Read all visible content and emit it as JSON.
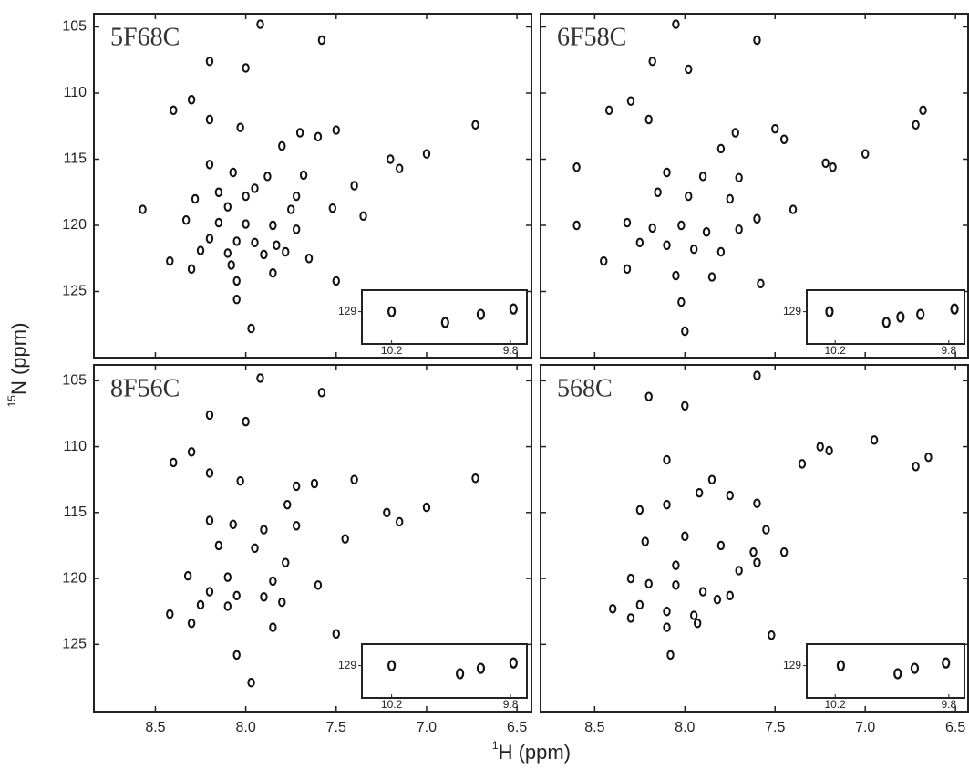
{
  "x_label_sup": "1",
  "x_label": "H (ppm)",
  "y_label_sup": "15",
  "y_label": "N (ppm)",
  "chart_data": [
    {
      "type": "scatter",
      "title": "5F68C",
      "x": [
        7.92,
        7.58,
        8.2,
        8.0,
        8.3,
        8.4,
        8.2,
        8.03,
        6.73,
        7.7,
        7.6,
        7.5,
        7.8,
        7.0,
        7.2,
        7.15,
        8.07,
        7.88,
        7.68,
        8.2,
        7.4,
        7.95,
        8.15,
        8.0,
        7.72,
        8.28,
        8.1,
        7.75,
        7.52,
        7.35,
        8.33,
        8.15,
        8.0,
        7.85,
        7.72,
        8.2,
        8.05,
        7.95,
        7.83,
        8.25,
        8.1,
        7.9,
        7.78,
        7.65,
        8.42,
        8.3,
        8.08,
        7.85,
        8.05,
        7.5,
        8.05,
        7.97,
        8.57
      ],
      "values": [
        104.8,
        106.0,
        107.6,
        108.1,
        110.5,
        111.3,
        112.0,
        112.6,
        112.4,
        113.0,
        113.3,
        112.8,
        114.0,
        114.6,
        115.0,
        115.7,
        116.0,
        116.3,
        116.2,
        115.4,
        117.0,
        117.2,
        117.5,
        117.8,
        117.8,
        118.0,
        118.6,
        118.8,
        118.7,
        119.3,
        119.6,
        119.8,
        119.9,
        120.0,
        120.3,
        121.0,
        121.2,
        121.3,
        121.5,
        121.9,
        122.1,
        122.2,
        122.0,
        122.5,
        122.7,
        123.3,
        123.0,
        123.6,
        124.2,
        124.2,
        125.6,
        127.8,
        118.8
      ],
      "xlim": [
        8.84,
        6.42
      ],
      "ylim": [
        104,
        130
      ],
      "xticks": [
        8.5,
        {
          "value": 8,
          "label": "8.0"
        },
        7.5,
        {
          "value": 7,
          "label": "7.0"
        },
        6.5
      ],
      "yticks": [
        105,
        110,
        115,
        120,
        125
      ],
      "inset": {
        "x": [
          10.2,
          10.02,
          9.9,
          9.79
        ],
        "values": [
          129.0,
          129.2,
          129.05,
          128.95
        ],
        "xlim": [
          10.3,
          9.745
        ],
        "ylim": [
          128.6,
          129.6
        ],
        "xticks": [
          10.2,
          9.8
        ],
        "yticks": [
          129
        ]
      }
    },
    {
      "type": "scatter",
      "title": "6F58C",
      "x": [
        8.05,
        7.6,
        8.18,
        7.98,
        8.3,
        8.42,
        8.2,
        6.72,
        6.68,
        7.72,
        7.5,
        7.45,
        7.8,
        7.22,
        7.18,
        7.0,
        8.6,
        8.1,
        7.9,
        7.7,
        8.15,
        7.98,
        7.75,
        7.4,
        8.32,
        8.18,
        8.02,
        7.88,
        7.7,
        7.6,
        8.25,
        8.1,
        7.95,
        7.8,
        8.45,
        8.32,
        8.05,
        7.85,
        7.58,
        8.6,
        8.02,
        8.0
      ],
      "values": [
        104.8,
        106.0,
        107.6,
        108.2,
        110.6,
        111.3,
        112.0,
        112.4,
        111.3,
        113.0,
        112.7,
        113.5,
        114.2,
        115.3,
        115.6,
        114.6,
        115.6,
        116.0,
        116.3,
        116.4,
        117.5,
        117.8,
        118.0,
        118.8,
        119.8,
        120.2,
        120.0,
        120.5,
        120.3,
        119.5,
        121.3,
        121.5,
        121.8,
        122.0,
        122.7,
        123.3,
        123.8,
        123.9,
        124.4,
        120.0,
        125.8,
        128.0
      ],
      "xlim": [
        8.8,
        6.43
      ],
      "ylim": [
        104,
        130
      ],
      "xticks": [
        8.5,
        {
          "value": 8,
          "label": "8.0"
        },
        7.5,
        {
          "value": 7,
          "label": "7.0"
        },
        6.5
      ],
      "yticks": [
        105,
        110,
        115,
        120,
        125
      ],
      "inset": {
        "x": [
          10.22,
          10.02,
          9.97,
          9.9,
          9.78
        ],
        "values": [
          129.0,
          129.2,
          129.1,
          129.05,
          128.95
        ],
        "xlim": [
          10.3,
          9.745
        ],
        "ylim": [
          128.6,
          129.6
        ],
        "xticks": [
          10.2,
          9.8
        ],
        "yticks": [
          129
        ]
      }
    },
    {
      "type": "scatter",
      "title": "8F56C",
      "x": [
        7.92,
        7.58,
        8.2,
        8.0,
        8.3,
        8.4,
        8.2,
        8.03,
        6.73,
        7.72,
        7.62,
        7.4,
        7.77,
        7.0,
        7.22,
        7.15,
        8.07,
        7.9,
        7.72,
        8.2,
        7.45,
        7.95,
        8.15,
        7.78,
        8.32,
        8.1,
        7.85,
        7.6,
        8.2,
        8.05,
        7.9,
        8.25,
        8.1,
        7.8,
        8.42,
        8.3,
        7.85,
        7.5,
        8.05,
        7.97
      ],
      "values": [
        104.8,
        105.9,
        107.6,
        108.1,
        110.4,
        111.2,
        112.0,
        112.6,
        112.4,
        113.0,
        112.8,
        112.5,
        114.4,
        114.6,
        115.0,
        115.7,
        115.9,
        116.3,
        116.0,
        115.6,
        117.0,
        117.7,
        117.5,
        118.8,
        119.8,
        119.9,
        120.2,
        120.5,
        121.0,
        121.3,
        121.4,
        122.0,
        122.1,
        121.8,
        122.7,
        123.4,
        123.7,
        124.2,
        125.8,
        127.9
      ],
      "xlim": [
        8.84,
        6.42
      ],
      "ylim": [
        103.8,
        130.1
      ],
      "xticks": [
        8.5,
        {
          "value": 8,
          "label": "8.0"
        },
        7.5,
        {
          "value": 7,
          "label": "7.0"
        },
        6.5
      ],
      "yticks": [
        105,
        110,
        115,
        120,
        125
      ],
      "inset": {
        "x": [
          10.2,
          9.97,
          9.9,
          9.79
        ],
        "values": [
          129.0,
          129.15,
          129.05,
          128.95
        ],
        "xlim": [
          10.3,
          9.745
        ],
        "ylim": [
          128.6,
          129.6
        ],
        "xticks": [
          10.2,
          9.8
        ],
        "yticks": [
          129
        ]
      }
    },
    {
      "type": "scatter",
      "title": "568C",
      "x": [
        7.6,
        8.2,
        8.0,
        8.1,
        7.25,
        7.2,
        6.95,
        7.35,
        8.25,
        8.1,
        7.92,
        7.85,
        7.75,
        7.6,
        7.55,
        8.22,
        8.0,
        7.8,
        7.62,
        6.72,
        6.65,
        8.05,
        7.7,
        7.6,
        7.45,
        8.3,
        8.2,
        8.05,
        7.9,
        7.75,
        8.4,
        8.25,
        8.1,
        7.95,
        7.82,
        8.3,
        8.1,
        7.93,
        7.52,
        8.08
      ],
      "values": [
        104.6,
        106.2,
        106.9,
        111.0,
        110.0,
        110.3,
        109.5,
        111.3,
        114.8,
        114.4,
        113.5,
        112.5,
        113.7,
        114.3,
        116.3,
        117.2,
        116.8,
        117.5,
        118.0,
        111.5,
        110.8,
        119.0,
        119.4,
        118.8,
        118.0,
        120.0,
        120.4,
        120.5,
        121.0,
        121.3,
        122.3,
        122.0,
        122.5,
        122.8,
        121.6,
        123.0,
        123.7,
        123.4,
        124.3,
        125.8
      ],
      "xlim": [
        8.8,
        6.43
      ],
      "ylim": [
        103.8,
        130.1
      ],
      "xticks": [
        8.5,
        {
          "value": 8,
          "label": "8.0"
        },
        7.5,
        {
          "value": 7,
          "label": "7.0"
        },
        6.5
      ],
      "yticks": [
        105,
        110,
        115,
        120,
        125
      ],
      "inset": {
        "x": [
          10.18,
          9.98,
          9.92,
          9.81
        ],
        "values": [
          129.0,
          129.15,
          129.05,
          128.95
        ],
        "xlim": [
          10.3,
          9.745
        ],
        "ylim": [
          128.6,
          129.6
        ],
        "xticks": [
          10.2,
          9.8
        ],
        "yticks": [
          129
        ]
      }
    }
  ]
}
